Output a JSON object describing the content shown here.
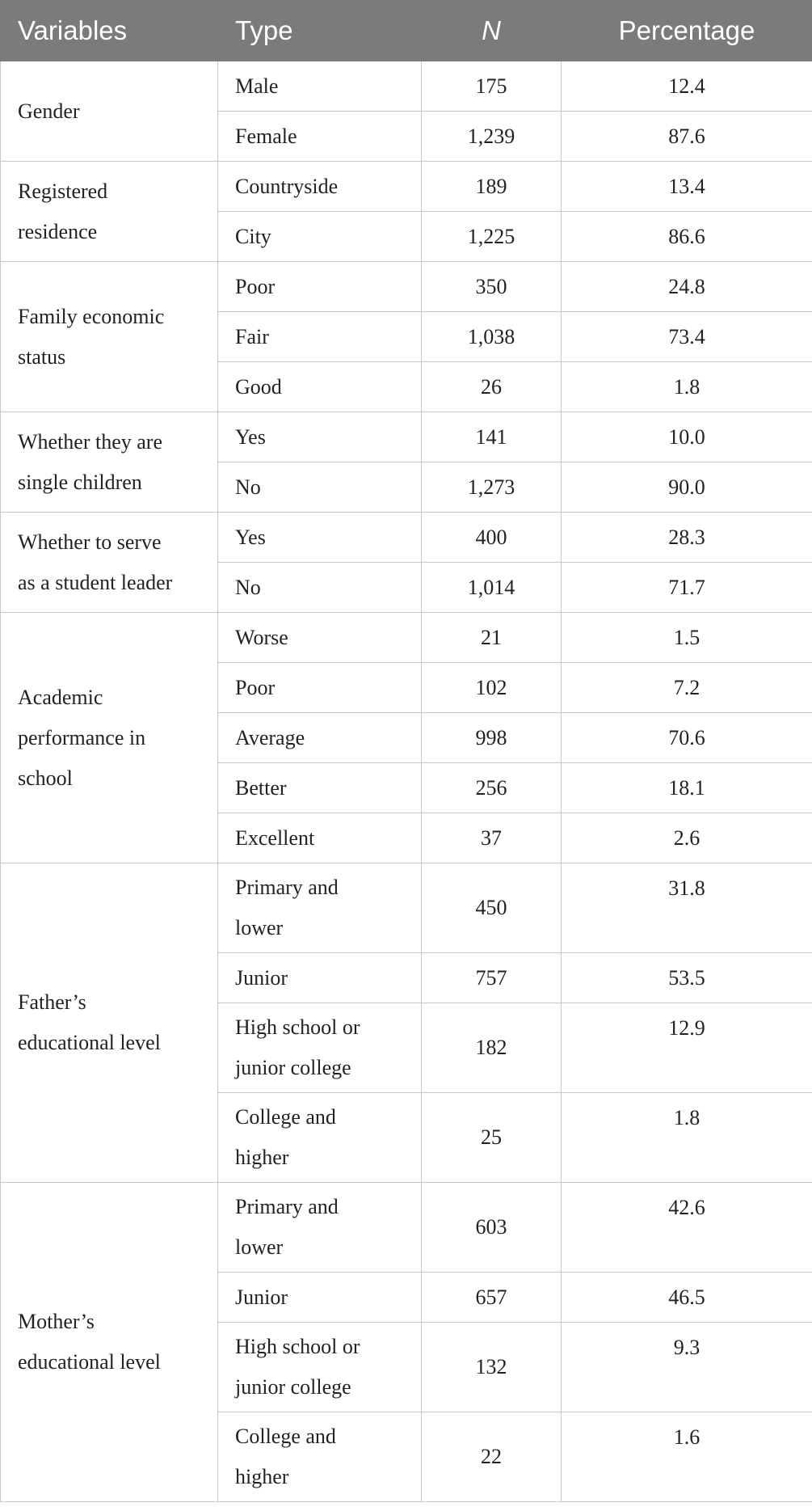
{
  "table": {
    "header": [
      "Variables",
      "Type",
      "N",
      "Percentage"
    ],
    "groups": [
      {
        "variable": [
          "Gender"
        ],
        "rows": [
          {
            "type": [
              "Male"
            ],
            "n": "175",
            "percentage": "12.4"
          },
          {
            "type": [
              "Female"
            ],
            "n": "1,239",
            "percentage": "87.6"
          }
        ]
      },
      {
        "variable": [
          "Registered",
          "residence"
        ],
        "rows": [
          {
            "type": [
              "Countryside"
            ],
            "n": "189",
            "percentage": "13.4"
          },
          {
            "type": [
              "City"
            ],
            "n": "1,225",
            "percentage": "86.6"
          }
        ]
      },
      {
        "variable": [
          "Family economic",
          "status"
        ],
        "rows": [
          {
            "type": [
              "Poor"
            ],
            "n": "350",
            "percentage": "24.8"
          },
          {
            "type": [
              "Fair"
            ],
            "n": "1,038",
            "percentage": "73.4"
          },
          {
            "type": [
              "Good"
            ],
            "n": "26",
            "percentage": "1.8"
          }
        ]
      },
      {
        "variable": [
          "Whether they are",
          "single children"
        ],
        "rows": [
          {
            "type": [
              "Yes"
            ],
            "n": "141",
            "percentage": "10.0"
          },
          {
            "type": [
              "No"
            ],
            "n": "1,273",
            "percentage": "90.0"
          }
        ]
      },
      {
        "variable": [
          "Whether to serve",
          "as a student leader"
        ],
        "rows": [
          {
            "type": [
              "Yes"
            ],
            "n": "400",
            "percentage": "28.3"
          },
          {
            "type": [
              "No"
            ],
            "n": "1,014",
            "percentage": "71.7"
          }
        ]
      },
      {
        "variable": [
          "Academic",
          "performance in",
          "school"
        ],
        "rows": [
          {
            "type": [
              "Worse"
            ],
            "n": "21",
            "percentage": "1.5"
          },
          {
            "type": [
              "Poor"
            ],
            "n": "102",
            "percentage": "7.2"
          },
          {
            "type": [
              "Average"
            ],
            "n": "998",
            "percentage": "70.6"
          },
          {
            "type": [
              "Better"
            ],
            "n": "256",
            "percentage": "18.1"
          },
          {
            "type": [
              "Excellent"
            ],
            "n": "37",
            "percentage": "2.6"
          }
        ]
      },
      {
        "variable": [
          "Father’s",
          "educational level"
        ],
        "rows": [
          {
            "type": [
              "Primary and",
              "lower"
            ],
            "n": "450",
            "percentage": "31.8"
          },
          {
            "type": [
              "Junior"
            ],
            "n": "757",
            "percentage": "53.5"
          },
          {
            "type": [
              "High school or",
              "junior college"
            ],
            "n": "182",
            "percentage": "12.9"
          },
          {
            "type": [
              "College and",
              "higher"
            ],
            "n": "25",
            "percentage": "1.8"
          }
        ]
      },
      {
        "variable": [
          "Mother’s",
          "educational level"
        ],
        "rows": [
          {
            "type": [
              "Primary and",
              "lower"
            ],
            "n": "603",
            "percentage": "42.6"
          },
          {
            "type": [
              "Junior"
            ],
            "n": "657",
            "percentage": "46.5"
          },
          {
            "type": [
              "High school or",
              "junior college"
            ],
            "n": "132",
            "percentage": "9.3"
          },
          {
            "type": [
              "College and",
              "higher"
            ],
            "n": "22",
            "percentage": "1.6"
          }
        ]
      }
    ]
  }
}
